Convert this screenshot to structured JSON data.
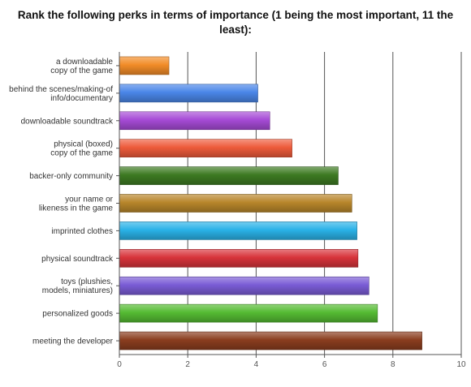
{
  "chart_data": {
    "type": "bar",
    "orientation": "horizontal",
    "title": "Rank the following perks in terms of importance (1 being the most important, 11 the least):",
    "categories": [
      "a downloadable copy of the game",
      "behind the scenes/making-of info/documentary",
      "downloadable soundtrack",
      "physical (boxed) copy of the game",
      "backer-only community",
      "your name or likeness in the game",
      "imprinted clothes",
      "physical soundtrack",
      "toys (plushies, models, miniatures)",
      "personalized goods",
      "meeting the developer"
    ],
    "category_lines": [
      [
        "a downloadable",
        "copy of the game"
      ],
      [
        "behind the scenes/making-of",
        "info/documentary"
      ],
      [
        "downloadable soundtrack"
      ],
      [
        "physical (boxed)",
        "copy of the game"
      ],
      [
        "backer-only community"
      ],
      [
        "your name or",
        "likeness in the game"
      ],
      [
        "imprinted clothes"
      ],
      [
        "physical soundtrack"
      ],
      [
        "toys (plushies,",
        "models, miniatures)"
      ],
      [
        "personalized goods"
      ],
      [
        "meeting the developer"
      ]
    ],
    "values": [
      1.45,
      4.05,
      4.4,
      5.05,
      6.4,
      6.8,
      6.95,
      6.98,
      7.3,
      7.55,
      8.85
    ],
    "colors": [
      "#f28c28",
      "#4a86e8",
      "#a64bd6",
      "#ee5b3b",
      "#3d7a22",
      "#b8862b",
      "#2ab2e8",
      "#d8343b",
      "#7a5cd6",
      "#55bb33",
      "#8a3d1f"
    ],
    "xlim": [
      0,
      10
    ],
    "xticks": [
      0,
      2,
      4,
      6,
      8,
      10
    ],
    "xlabel": "",
    "ylabel": "",
    "grid": "vertical"
  }
}
